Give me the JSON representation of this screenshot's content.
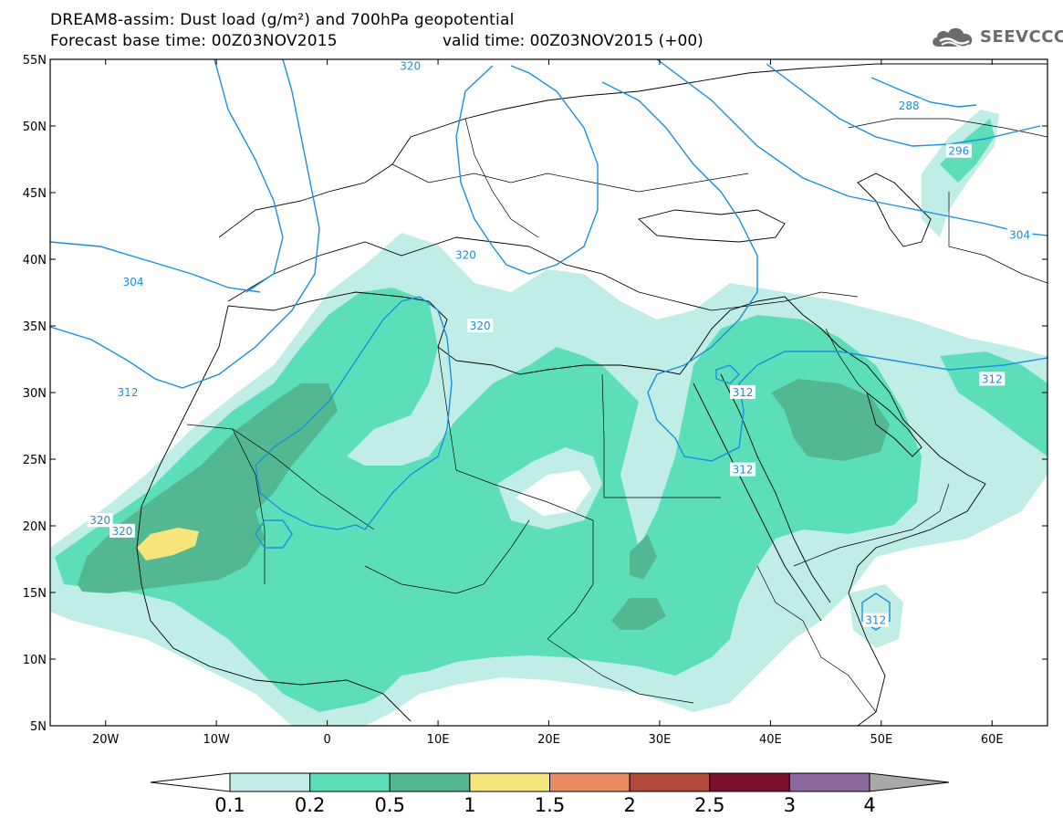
{
  "title_line1": "DREAM8-assim: Dust load (g/m²) and 700hPa geopotential",
  "title_line2": "Forecast base time: 00Z03NOV2015",
  "valid_time": "valid time: 00Z03NOV2015 (+00)",
  "logo": {
    "text": "SEEVCCC",
    "icon": "cloud-icon",
    "color": "#6b6b6b"
  },
  "map": {
    "lon_range": [
      -25,
      65
    ],
    "lat_range": [
      5,
      55
    ],
    "lat_ticks": [
      {
        "value": 55,
        "label": "55N"
      },
      {
        "value": 50,
        "label": "50N"
      },
      {
        "value": 45,
        "label": "45N"
      },
      {
        "value": 40,
        "label": "40N"
      },
      {
        "value": 35,
        "label": "35N"
      },
      {
        "value": 30,
        "label": "30N"
      },
      {
        "value": 25,
        "label": "25N"
      },
      {
        "value": 20,
        "label": "20N"
      },
      {
        "value": 15,
        "label": "15N"
      },
      {
        "value": 10,
        "label": "10N"
      },
      {
        "value": 5,
        "label": "5N"
      }
    ],
    "lon_ticks": [
      {
        "value": -20,
        "label": "20W"
      },
      {
        "value": -10,
        "label": "10W"
      },
      {
        "value": 0,
        "label": "0"
      },
      {
        "value": 10,
        "label": "10E"
      },
      {
        "value": 20,
        "label": "20E"
      },
      {
        "value": 30,
        "label": "30E"
      },
      {
        "value": 40,
        "label": "40E"
      },
      {
        "value": 50,
        "label": "50E"
      },
      {
        "value": 60,
        "label": "60E"
      }
    ],
    "contour_color": "#1a8fe0",
    "contour_labels": [
      {
        "text": "320",
        "lon": 7.5,
        "lat": 54.5
      },
      {
        "text": "288",
        "lon": 52.5,
        "lat": 51.5
      },
      {
        "text": "296",
        "lon": 57.0,
        "lat": 48.1
      },
      {
        "text": "304",
        "lon": 62.5,
        "lat": 41.8
      },
      {
        "text": "304",
        "lon": -17.5,
        "lat": 38.3
      },
      {
        "text": "320",
        "lon": 12.5,
        "lat": 40.3
      },
      {
        "text": "320",
        "lon": 13.8,
        "lat": 35.0
      },
      {
        "text": "312",
        "lon": -18.0,
        "lat": 30.0
      },
      {
        "text": "312",
        "lon": 60.0,
        "lat": 31.0
      },
      {
        "text": "312",
        "lon": 37.5,
        "lat": 30.0
      },
      {
        "text": "312",
        "lon": 37.5,
        "lat": 24.2
      },
      {
        "text": "320",
        "lon": -20.5,
        "lat": 20.4
      },
      {
        "text": "320",
        "lon": -18.5,
        "lat": 19.6
      },
      {
        "text": "312",
        "lon": 49.5,
        "lat": 12.9
      }
    ]
  },
  "colorbar": {
    "thresholds": [
      "0.1",
      "0.2",
      "0.5",
      "1",
      "1.5",
      "2",
      "2.5",
      "3",
      "4"
    ],
    "colors": [
      "#ffffff",
      "#c0ede6",
      "#5cdfb8",
      "#53b891",
      "#f5e57a",
      "#ea8c63",
      "#b0493a",
      "#7c0f2b",
      "#8a679c",
      "#a9a9a9"
    ]
  },
  "dust_colors": {
    "level1": "#c0ede6",
    "level2": "#5cdfb8",
    "level3": "#53b891",
    "level4": "#f5e57a"
  }
}
